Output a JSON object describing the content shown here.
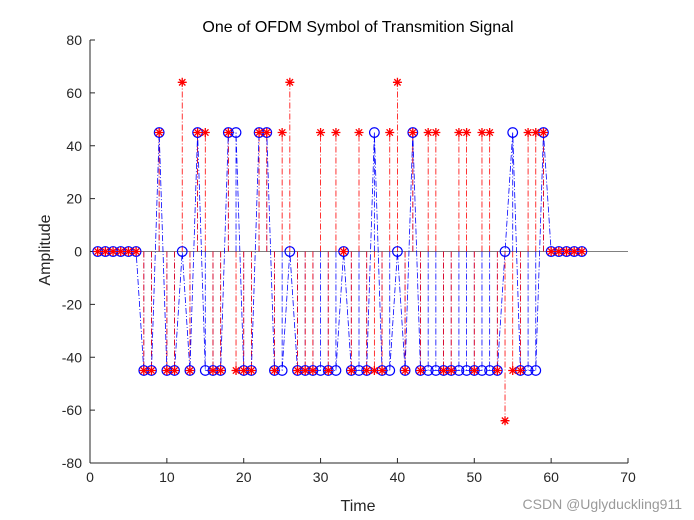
{
  "chart_data": {
    "type": "scatter",
    "title": "One of OFDM Symbol of Transmition Signal",
    "xlabel": "Time",
    "ylabel": "Amplitude",
    "xlim": [
      0,
      70
    ],
    "ylim": [
      -80,
      80
    ],
    "xticks": [
      0,
      10,
      20,
      30,
      40,
      50,
      60,
      70
    ],
    "yticks": [
      80,
      60,
      40,
      20,
      0,
      -20,
      -40,
      -60,
      -80
    ],
    "grid": false,
    "zero_line": true,
    "colors": {
      "circle_series": "#0000ff",
      "star_series": "#ff0000",
      "zero_line": "#808080"
    },
    "series": [
      {
        "marker": "circle",
        "style": "dash-dot",
        "x": [
          1,
          2,
          3,
          4,
          5,
          6,
          7,
          8,
          9,
          10,
          11,
          12,
          13,
          14,
          15,
          16,
          17,
          18,
          19,
          20,
          21,
          22,
          23,
          24,
          25,
          26,
          27,
          28,
          29,
          30,
          31,
          32,
          33,
          34,
          35,
          36,
          37,
          38,
          39,
          40,
          41,
          42,
          43,
          44,
          45,
          46,
          47,
          48,
          49,
          50,
          51,
          52,
          53,
          54,
          55,
          56,
          57,
          58,
          59,
          60,
          61,
          62,
          63,
          64
        ],
        "values": [
          0,
          0,
          0,
          0,
          0,
          0,
          -45,
          -45,
          45,
          -45,
          -45,
          0,
          -45,
          45,
          -45,
          -45,
          -45,
          45,
          45,
          -45,
          -45,
          45,
          45,
          -45,
          -45,
          0,
          -45,
          -45,
          -45,
          -45,
          -45,
          -45,
          0,
          -45,
          -45,
          -45,
          45,
          -45,
          -45,
          0,
          -45,
          45,
          -45,
          -45,
          -45,
          -45,
          -45,
          -45,
          -45,
          -45,
          -45,
          -45,
          -45,
          0,
          45,
          -45,
          -45,
          -45,
          45,
          0,
          0,
          0,
          0,
          0
        ]
      },
      {
        "marker": "star",
        "style": "dash-dot",
        "x": [
          1,
          2,
          3,
          4,
          5,
          6,
          7,
          8,
          9,
          10,
          11,
          12,
          13,
          14,
          15,
          16,
          17,
          18,
          19,
          20,
          21,
          22,
          23,
          24,
          25,
          26,
          27,
          28,
          29,
          30,
          31,
          32,
          33,
          34,
          35,
          36,
          37,
          38,
          39,
          40,
          41,
          42,
          43,
          44,
          45,
          46,
          47,
          48,
          49,
          50,
          51,
          52,
          53,
          54,
          55,
          56,
          57,
          58,
          59,
          60,
          61,
          62,
          63,
          64
        ],
        "values": [
          0,
          0,
          0,
          0,
          0,
          0,
          -45,
          -45,
          45,
          -45,
          -45,
          64,
          -45,
          45,
          45,
          -45,
          -45,
          45,
          -45,
          -45,
          -45,
          45,
          45,
          -45,
          45,
          64,
          -45,
          -45,
          -45,
          45,
          -45,
          45,
          0,
          -45,
          45,
          -45,
          -45,
          -45,
          45,
          64,
          -45,
          45,
          -45,
          45,
          45,
          -45,
          -45,
          45,
          45,
          -45,
          45,
          45,
          -45,
          -64,
          -45,
          -45,
          45,
          45,
          45,
          0,
          0,
          0,
          0,
          0
        ]
      }
    ]
  },
  "watermark": "CSDN @Uglyduckling911"
}
